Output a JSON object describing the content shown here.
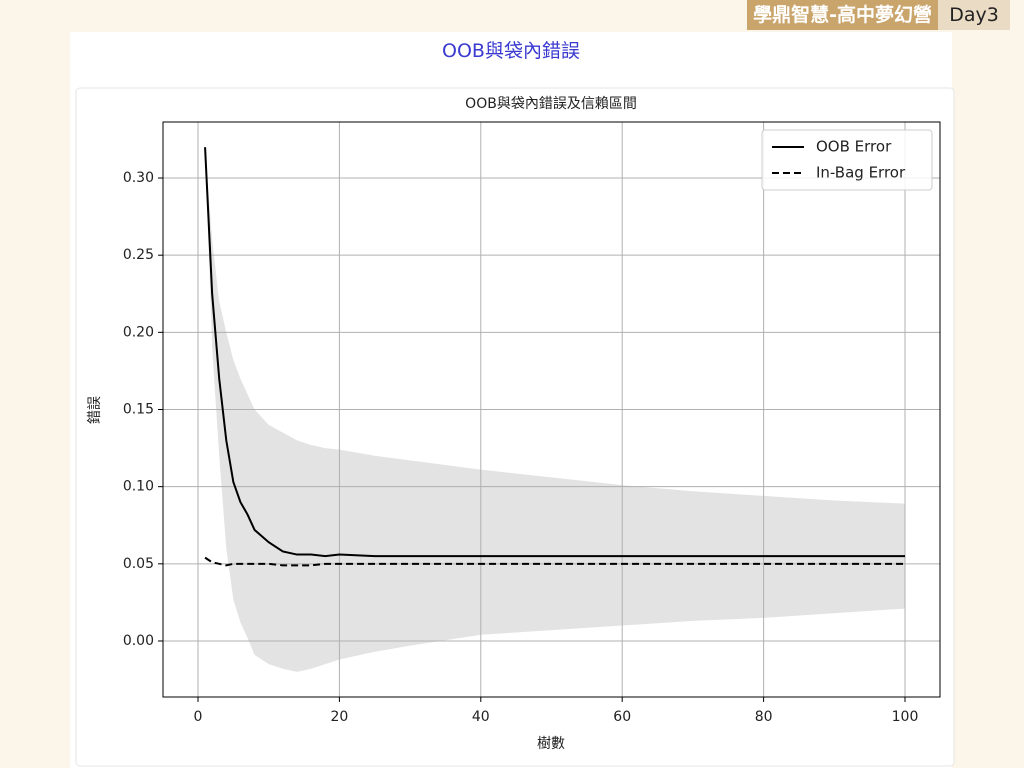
{
  "header": {
    "badge": "學鼎智慧-高中夢幻營",
    "day": "Day3"
  },
  "page_title": "OOB與袋內錯誤",
  "chart_data": {
    "type": "line",
    "title": "OOB與袋內錯誤及信賴區間",
    "x_label": "樹數",
    "y_label": "錯誤",
    "x": [
      1,
      2,
      3,
      4,
      5,
      6,
      7,
      8,
      10,
      12,
      14,
      16,
      18,
      20,
      25,
      30,
      40,
      50,
      60,
      70,
      80,
      90,
      100
    ],
    "series": [
      {
        "name": "OOB Error",
        "color": "#000000",
        "dash": "solid",
        "values": [
          0.32,
          0.225,
          0.17,
          0.13,
          0.103,
          0.09,
          0.082,
          0.072,
          0.064,
          0.058,
          0.056,
          0.056,
          0.055,
          0.056,
          0.055,
          0.055,
          0.055,
          0.055,
          0.055,
          0.055,
          0.055,
          0.055,
          0.055
        ]
      },
      {
        "name": "In-Bag Error",
        "color": "#000000",
        "dash": "dashed",
        "values": [
          0.054,
          0.051,
          0.05,
          0.049,
          0.05,
          0.05,
          0.05,
          0.05,
          0.05,
          0.049,
          0.049,
          0.049,
          0.05,
          0.05,
          0.05,
          0.05,
          0.05,
          0.05,
          0.05,
          0.05,
          0.05,
          0.05,
          0.05
        ]
      }
    ],
    "band": {
      "color": "#e3e3e3",
      "upper": [
        0.32,
        0.26,
        0.22,
        0.2,
        0.182,
        0.17,
        0.16,
        0.15,
        0.14,
        0.135,
        0.13,
        0.127,
        0.125,
        0.124,
        0.12,
        0.117,
        0.111,
        0.106,
        0.101,
        0.097,
        0.094,
        0.091,
        0.089
      ],
      "lower": [
        0.32,
        0.19,
        0.12,
        0.06,
        0.027,
        0.012,
        0.002,
        -0.009,
        -0.015,
        -0.018,
        -0.02,
        -0.018,
        -0.015,
        -0.012,
        -0.007,
        -0.003,
        0.004,
        0.007,
        0.01,
        0.013,
        0.015,
        0.018,
        0.021
      ]
    },
    "xlim": [
      -4.95,
      104.95
    ],
    "ylim": [
      -0.0363,
      0.3363
    ],
    "xticks": [
      0,
      20,
      40,
      60,
      80,
      100
    ],
    "yticks": [
      {
        "value": 0,
        "label": "0.00"
      },
      {
        "value": 0.05,
        "label": "0.05"
      },
      {
        "value": 0.1,
        "label": "0.10"
      },
      {
        "value": 0.15,
        "label": "0.15"
      },
      {
        "value": 0.2,
        "label": "0.20"
      },
      {
        "value": 0.25,
        "label": "0.25"
      },
      {
        "value": 0.3,
        "label": "0.30"
      }
    ],
    "grid": true,
    "legend": "upper-right"
  }
}
